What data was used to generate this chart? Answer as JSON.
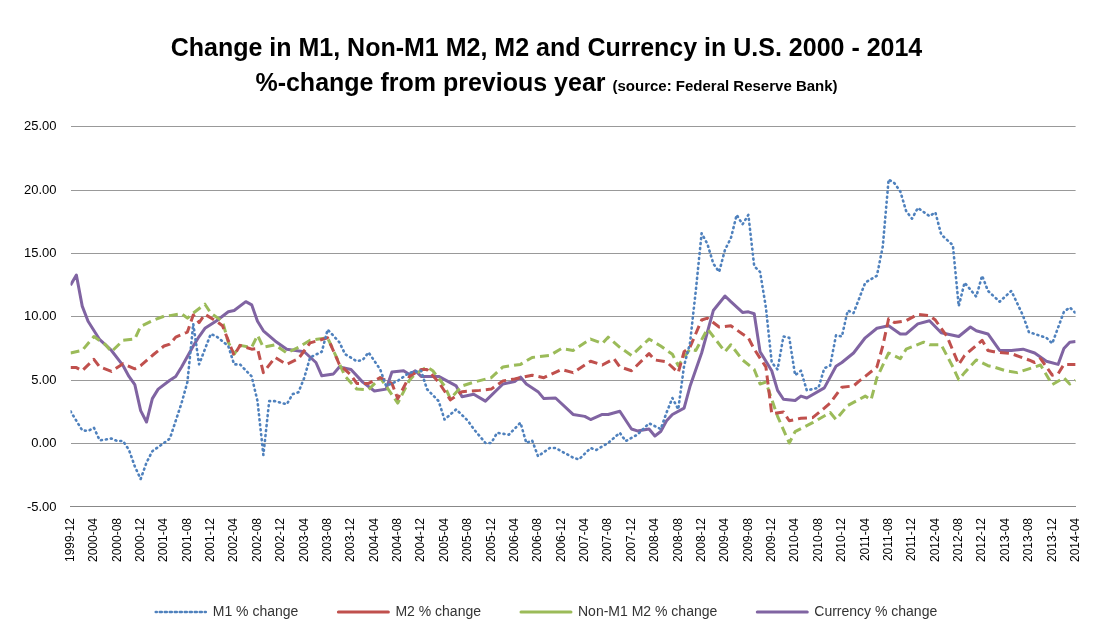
{
  "chart_data": {
    "type": "line",
    "title": "Change in M1, Non-M1 M2, M2 and Currency in U.S. 2000 - 2014",
    "subtitle": "%-change from previous year",
    "annotations": [
      "(source: Federal Reserve Bank)"
    ],
    "xlim": [
      "1999-12",
      "2014-04"
    ],
    "xticks": [
      "1999-12",
      "2000-04",
      "2000-08",
      "2000-12",
      "2001-04",
      "2001-08",
      "2001-12",
      "2002-04",
      "2002-08",
      "2002-12",
      "2003-04",
      "2003-08",
      "2003-12",
      "2004-04",
      "2004-08",
      "2004-12",
      "2005-04",
      "2005-08",
      "2005-12",
      "2006-04",
      "2006-08",
      "2006-12",
      "2007-04",
      "2007-08",
      "2007-12",
      "2008-04",
      "2008-08",
      "2008-12",
      "2009-04",
      "2009-08",
      "2009-12",
      "2010-04",
      "2010-08",
      "2010-12",
      "2011-04",
      "2011-08",
      "2011-12",
      "2012-04",
      "2012-08",
      "2012-12",
      "2013-04",
      "2013-08",
      "2013-12",
      "2014-04"
    ],
    "ylim": [
      -5,
      25
    ],
    "yticks": [
      {
        "value": -5,
        "label": "-5.00"
      },
      {
        "value": 0,
        "label": "0.00"
      },
      {
        "value": 5,
        "label": "5.00"
      },
      {
        "value": 10,
        "label": "10.00"
      },
      {
        "value": 15,
        "label": "15.00"
      },
      {
        "value": 20,
        "label": "20.00"
      },
      {
        "value": 25,
        "label": "25.00"
      }
    ],
    "grid": "y",
    "legend": "bottom",
    "marker": "none",
    "series": [
      {
        "name": "M1 % change",
        "color": "#4f81bd",
        "line_style": "dotted",
        "x": [
          "1999-12",
          "2000-02",
          "2000-03",
          "2000-04",
          "2000-05",
          "2000-07",
          "2000-08",
          "2000-09",
          "2000-10",
          "2000-11",
          "2000-12",
          "2001-01",
          "2001-02",
          "2001-04",
          "2001-05",
          "2001-06",
          "2001-07",
          "2001-08",
          "2001-09",
          "2001-10",
          "2001-11",
          "2001-12",
          "2002-01",
          "2002-03",
          "2002-04",
          "2002-05",
          "2002-07",
          "2002-08",
          "2002-09",
          "2002-10",
          "2002-11",
          "2003-01",
          "2003-02",
          "2003-03",
          "2003-04",
          "2003-05",
          "2003-07",
          "2003-08",
          "2003-10",
          "2003-11",
          "2004-01",
          "2004-02",
          "2004-03",
          "2004-05",
          "2004-06",
          "2004-08",
          "2004-10",
          "2004-12",
          "2005-01",
          "2005-03",
          "2005-04",
          "2005-06",
          "2005-08",
          "2005-09",
          "2005-11",
          "2005-12",
          "2006-01",
          "2006-03",
          "2006-05",
          "2006-06",
          "2006-07",
          "2006-08",
          "2006-10",
          "2006-11",
          "2007-02",
          "2007-03",
          "2007-05",
          "2007-06",
          "2007-08",
          "2007-10",
          "2007-11",
          "2008-01",
          "2008-03",
          "2008-05",
          "2008-06",
          "2008-07",
          "2008-08",
          "2008-09",
          "2008-10",
          "2008-11",
          "2008-12",
          "2009-01",
          "2009-02",
          "2009-03",
          "2009-04",
          "2009-05",
          "2009-06",
          "2009-07",
          "2009-08",
          "2009-09",
          "2009-10",
          "2009-11",
          "2009-12",
          "2010-01",
          "2010-02",
          "2010-03",
          "2010-04",
          "2010-05",
          "2010-06",
          "2010-08",
          "2010-09",
          "2010-10",
          "2010-11",
          "2010-12",
          "2011-01",
          "2011-02",
          "2011-04",
          "2011-06",
          "2011-07",
          "2011-08",
          "2011-09",
          "2011-10",
          "2011-11",
          "2011-12",
          "2012-01",
          "2012-03",
          "2012-04",
          "2012-05",
          "2012-07",
          "2012-08",
          "2012-09",
          "2012-11",
          "2012-12",
          "2013-01",
          "2013-03",
          "2013-05",
          "2013-07",
          "2013-08",
          "2013-11",
          "2013-12",
          "2014-02",
          "2014-03",
          "2014-04"
        ],
        "values": [
          2.55,
          1.05,
          1.0,
          1.25,
          0.25,
          0.4,
          0.2,
          0.2,
          -0.5,
          -1.8,
          -2.8,
          -1.5,
          -0.6,
          0.05,
          0.4,
          1.8,
          3.2,
          4.85,
          9.45,
          6.25,
          7.45,
          8.65,
          8.45,
          7.7,
          6.25,
          6.25,
          5.3,
          3.35,
          -0.9,
          3.35,
          3.35,
          3.1,
          3.9,
          4.05,
          5.2,
          6.8,
          7.25,
          9.0,
          8.0,
          7.05,
          6.5,
          6.6,
          7.2,
          5.85,
          4.55,
          4.95,
          5.6,
          5.75,
          4.3,
          3.35,
          1.9,
          2.7,
          1.8,
          1.15,
          0.05,
          0.05,
          0.85,
          0.7,
          1.65,
          0.05,
          0.25,
          -1.0,
          -0.35,
          -0.35,
          -1.1,
          -1.25,
          -0.35,
          -0.5,
          0.05,
          0.85,
          0.2,
          0.7,
          1.6,
          1.15,
          2.45,
          3.6,
          2.7,
          6.15,
          7.9,
          12.05,
          16.6,
          15.75,
          14.2,
          13.55,
          15.3,
          16.2,
          18.05,
          17.3,
          18.05,
          14.0,
          13.55,
          10.75,
          6.4,
          5.85,
          8.45,
          8.35,
          5.4,
          5.75,
          4.2,
          4.4,
          5.95,
          6.15,
          8.55,
          8.45,
          10.5,
          10.3,
          12.7,
          13.25,
          15.55,
          20.85,
          20.55,
          19.9,
          18.35,
          17.75,
          18.6,
          17.95,
          18.25,
          16.5,
          15.65,
          10.85,
          12.7,
          11.6,
          13.25,
          12.05,
          11.2,
          12.05,
          10.1,
          8.8,
          8.35,
          7.9,
          10.4,
          10.75,
          10.3
        ]
      },
      {
        "name": "M2 % change",
        "color": "#c0504d",
        "line_style": "dashed",
        "x": [
          "1999-12",
          "2000-01",
          "2000-02",
          "2000-04",
          "2000-05",
          "2000-07",
          "2000-09",
          "2000-11",
          "2000-12",
          "2001-02",
          "2001-04",
          "2001-05",
          "2001-06",
          "2001-08",
          "2001-09",
          "2001-10",
          "2001-11",
          "2002-01",
          "2002-02",
          "2002-04",
          "2002-05",
          "2002-07",
          "2002-08",
          "2002-09",
          "2002-11",
          "2003-01",
          "2003-03",
          "2003-05",
          "2003-08",
          "2003-10",
          "2003-12",
          "2004-01",
          "2004-03",
          "2004-05",
          "2004-07",
          "2004-08",
          "2004-10",
          "2004-12",
          "2005-01",
          "2005-03",
          "2005-05",
          "2005-07",
          "2005-10",
          "2005-12",
          "2006-02",
          "2006-04",
          "2006-07",
          "2006-09",
          "2006-12",
          "2007-02",
          "2007-05",
          "2007-07",
          "2007-09",
          "2007-10",
          "2007-12",
          "2008-03",
          "2008-04",
          "2008-06",
          "2008-08",
          "2008-09",
          "2008-10",
          "2008-12",
          "2009-01",
          "2009-03",
          "2009-05",
          "2009-07",
          "2009-08",
          "2009-09",
          "2009-11",
          "2009-12",
          "2010-02",
          "2010-03",
          "2010-05",
          "2010-07",
          "2010-09",
          "2010-10",
          "2010-12",
          "2011-02",
          "2011-03",
          "2011-04",
          "2011-06",
          "2011-07",
          "2011-08",
          "2011-09",
          "2011-11",
          "2012-01",
          "2012-03",
          "2012-04",
          "2012-06",
          "2012-08",
          "2012-09",
          "2012-12",
          "2013-01",
          "2013-02",
          "2013-05",
          "2013-08",
          "2013-09",
          "2013-10",
          "2013-12",
          "2014-01",
          "2014-02",
          "2014-04"
        ],
        "values": [
          6.0,
          6.0,
          5.75,
          6.65,
          6.05,
          5.7,
          6.3,
          5.9,
          6.15,
          6.95,
          7.7,
          7.85,
          8.4,
          8.8,
          10.15,
          9.55,
          10.2,
          9.65,
          9.3,
          6.95,
          7.75,
          7.45,
          7.5,
          5.6,
          6.8,
          6.25,
          6.7,
          7.95,
          8.35,
          6.25,
          5.4,
          4.75,
          4.75,
          5.2,
          4.75,
          3.55,
          5.3,
          5.85,
          5.85,
          4.85,
          3.45,
          4.1,
          4.2,
          4.3,
          4.95,
          5.1,
          5.4,
          5.2,
          5.85,
          5.6,
          6.5,
          6.2,
          6.7,
          6.05,
          5.75,
          7.1,
          6.6,
          6.45,
          5.6,
          7.25,
          7.6,
          9.75,
          9.9,
          9.2,
          9.3,
          8.65,
          8.35,
          7.45,
          6.05,
          2.35,
          2.5,
          1.8,
          2.0,
          2.05,
          2.8,
          3.2,
          4.45,
          4.55,
          4.95,
          5.3,
          6.05,
          7.7,
          9.85,
          9.55,
          9.7,
          10.2,
          10.1,
          9.75,
          8.45,
          6.25,
          6.95,
          8.15,
          7.35,
          7.25,
          7.1,
          6.6,
          6.4,
          6.7,
          5.4,
          5.5,
          6.25,
          6.25
        ]
      },
      {
        "name": "Non-M1 M2 % change",
        "color": "#9bbb59",
        "line_style": "dashed",
        "x": [
          "1999-12",
          "2000-02",
          "2000-04",
          "2000-06",
          "2000-07",
          "2000-09",
          "2000-11",
          "2000-12",
          "2001-02",
          "2001-04",
          "2001-05",
          "2001-07",
          "2001-08",
          "2001-09",
          "2001-11",
          "2001-12",
          "2002-02",
          "2002-03",
          "2002-04",
          "2002-05",
          "2002-07",
          "2002-08",
          "2002-09",
          "2002-11",
          "2003-01",
          "2003-03",
          "2003-05",
          "2003-08",
          "2003-11",
          "2004-01",
          "2004-03",
          "2004-05",
          "2004-08",
          "2004-10",
          "2004-11",
          "2005-01",
          "2005-02",
          "2005-04",
          "2005-05",
          "2005-07",
          "2005-09",
          "2005-12",
          "2006-02",
          "2006-05",
          "2006-07",
          "2006-10",
          "2006-12",
          "2007-02",
          "2007-05",
          "2007-07",
          "2007-08",
          "2007-10",
          "2007-12",
          "2008-03",
          "2008-05",
          "2008-07",
          "2008-08",
          "2008-10",
          "2008-11",
          "2009-01",
          "2009-04",
          "2009-05",
          "2009-07",
          "2009-09",
          "2009-10",
          "2009-11",
          "2010-01",
          "2010-03",
          "2010-04",
          "2010-07",
          "2010-10",
          "2010-11",
          "2011-01",
          "2011-04",
          "2011-05",
          "2011-06",
          "2011-08",
          "2011-10",
          "2011-11",
          "2012-02",
          "2012-03",
          "2012-05",
          "2012-07",
          "2012-08",
          "2012-09",
          "2012-11",
          "2013-01",
          "2013-02",
          "2013-04",
          "2013-06",
          "2013-08",
          "2013-10",
          "2013-12",
          "2014-02",
          "2014-03",
          "2014-04"
        ],
        "values": [
          7.15,
          7.35,
          8.45,
          7.8,
          7.25,
          8.15,
          8.25,
          9.25,
          9.7,
          10.05,
          10.1,
          10.25,
          9.9,
          10.3,
          11.0,
          10.3,
          9.65,
          8.0,
          7.05,
          7.75,
          7.6,
          8.55,
          7.6,
          7.8,
          7.15,
          7.6,
          8.15,
          8.35,
          5.3,
          4.3,
          4.25,
          5.2,
          3.2,
          5.0,
          5.5,
          6.05,
          5.75,
          4.55,
          3.55,
          4.55,
          4.85,
          5.2,
          6.05,
          6.25,
          6.8,
          6.95,
          7.5,
          7.35,
          8.25,
          7.9,
          8.4,
          7.6,
          6.95,
          8.25,
          7.7,
          7.05,
          6.15,
          7.45,
          7.35,
          9.05,
          7.25,
          7.8,
          6.6,
          5.85,
          4.7,
          4.85,
          2.15,
          0.05,
          0.95,
          1.65,
          2.45,
          1.9,
          3.0,
          3.75,
          3.45,
          5.2,
          7.15,
          6.7,
          7.45,
          8.0,
          7.8,
          7.8,
          6.05,
          5.05,
          5.6,
          6.6,
          6.15,
          6.05,
          5.75,
          5.6,
          5.9,
          6.2,
          4.65,
          5.2,
          4.7,
          5.0
        ]
      },
      {
        "name": "Currency % change",
        "color": "#8064a2",
        "line_style": "solid",
        "x": [
          "1999-12",
          "2000-01",
          "2000-02",
          "2000-03",
          "2000-05",
          "2000-07",
          "2000-09",
          "2000-10",
          "2000-11",
          "2000-12",
          "2001-01",
          "2001-02",
          "2001-03",
          "2001-05",
          "2001-06",
          "2001-07",
          "2001-09",
          "2001-10",
          "2001-11",
          "2002-01",
          "2002-03",
          "2002-04",
          "2002-06",
          "2002-07",
          "2002-08",
          "2002-09",
          "2002-11",
          "2003-01",
          "2003-04",
          "2003-06",
          "2003-07",
          "2003-09",
          "2003-10",
          "2003-12",
          "2004-02",
          "2004-04",
          "2004-06",
          "2004-07",
          "2004-09",
          "2004-10",
          "2004-11",
          "2004-12",
          "2005-03",
          "2005-06",
          "2005-07",
          "2005-09",
          "2005-11",
          "2006-02",
          "2006-04",
          "2006-05",
          "2006-06",
          "2006-08",
          "2006-09",
          "2006-11",
          "2007-02",
          "2007-04",
          "2007-05",
          "2007-07",
          "2007-08",
          "2007-10",
          "2007-12",
          "2008-01",
          "2008-03",
          "2008-04",
          "2008-05",
          "2008-06",
          "2008-07",
          "2008-09",
          "2008-10",
          "2008-12",
          "2009-02",
          "2009-04",
          "2009-05",
          "2009-07",
          "2009-08",
          "2009-09",
          "2009-10",
          "2009-12",
          "2010-01",
          "2010-02",
          "2010-04",
          "2010-05",
          "2010-06",
          "2010-09",
          "2010-11",
          "2010-12",
          "2011-02",
          "2011-04",
          "2011-06",
          "2011-08",
          "2011-10",
          "2011-11",
          "2012-01",
          "2012-03",
          "2012-05",
          "2012-08",
          "2012-10",
          "2012-11",
          "2013-01",
          "2013-03",
          "2013-05",
          "2013-07",
          "2013-09",
          "2013-11",
          "2014-01",
          "2014-02",
          "2014-03",
          "2014-04"
        ],
        "values": [
          12.5,
          13.3,
          10.85,
          9.65,
          8.2,
          7.35,
          6.15,
          5.3,
          4.65,
          2.6,
          1.7,
          3.55,
          4.3,
          5.0,
          5.3,
          6.05,
          7.7,
          8.45,
          9.1,
          9.7,
          10.4,
          10.5,
          11.2,
          10.95,
          9.65,
          8.9,
          8.1,
          7.45,
          7.25,
          6.4,
          5.35,
          5.5,
          6.05,
          5.85,
          4.85,
          4.15,
          4.3,
          5.65,
          5.75,
          5.45,
          5.75,
          5.3,
          5.3,
          4.55,
          3.7,
          3.9,
          3.35,
          4.7,
          4.9,
          5.25,
          4.7,
          4.1,
          3.55,
          3.6,
          2.3,
          2.15,
          1.9,
          2.3,
          2.3,
          2.55,
          1.15,
          1.0,
          1.15,
          0.6,
          0.95,
          1.8,
          2.3,
          2.8,
          4.5,
          7.15,
          10.5,
          11.65,
          11.2,
          10.35,
          10.4,
          10.25,
          7.25,
          5.75,
          4.2,
          3.5,
          3.4,
          3.75,
          3.6,
          4.4,
          6.1,
          6.4,
          7.15,
          8.35,
          9.1,
          9.3,
          8.65,
          8.65,
          9.45,
          9.7,
          8.75,
          8.45,
          9.2,
          8.9,
          8.65,
          7.35,
          7.35,
          7.45,
          7.15,
          6.5,
          6.25,
          7.5,
          8.0,
          8.05
        ]
      }
    ]
  }
}
